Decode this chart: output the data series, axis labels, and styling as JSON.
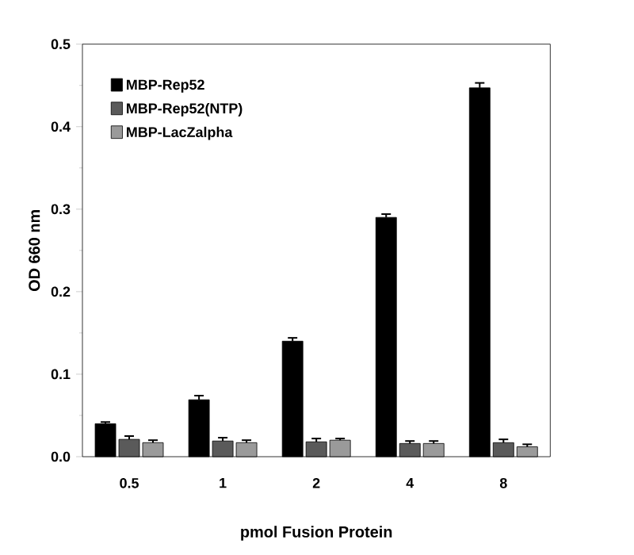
{
  "chart_data": {
    "type": "bar",
    "xlabel": "pmol Fusion Protein",
    "ylabel": "OD 660 nm",
    "categories": [
      "0.5",
      "1",
      "2",
      "4",
      "8"
    ],
    "series": [
      {
        "name": "MBP-Rep52",
        "color": "#000000",
        "values": [
          0.04,
          0.069,
          0.14,
          0.29,
          0.447
        ],
        "errors": [
          0.002,
          0.005,
          0.004,
          0.004,
          0.006
        ]
      },
      {
        "name": "MBP-Rep52(NTP)",
        "color": "#5a5a5a",
        "values": [
          0.021,
          0.019,
          0.018,
          0.016,
          0.017
        ],
        "errors": [
          0.004,
          0.004,
          0.004,
          0.003,
          0.004
        ]
      },
      {
        "name": "MBP-LacZalpha",
        "color": "#9a9a9a",
        "values": [
          0.017,
          0.017,
          0.02,
          0.016,
          0.012
        ],
        "errors": [
          0.003,
          0.003,
          0.002,
          0.003,
          0.003
        ]
      }
    ],
    "ylim": [
      0,
      0.5
    ],
    "yticks": [
      {
        "value": 0,
        "label": "0.0"
      },
      0.1,
      0.2,
      0.3,
      0.4,
      0.5
    ],
    "legend": "top left",
    "grid": false
  }
}
